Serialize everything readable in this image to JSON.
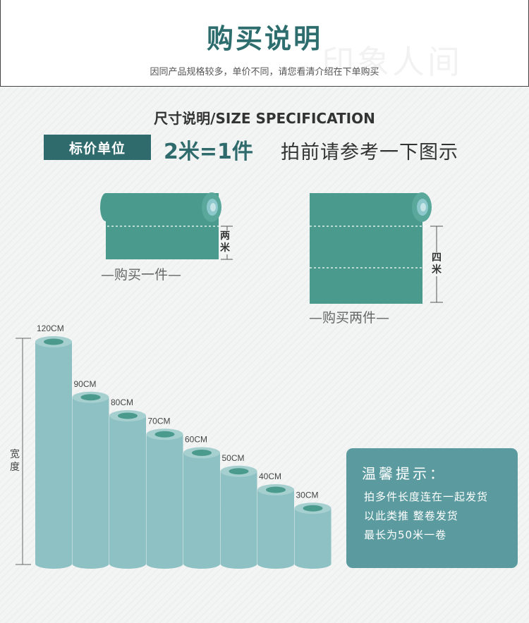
{
  "header": {
    "title": "购买说明",
    "subtitle": "因同产品规格较多，单价不同，请您看清介绍在下单购买",
    "watermark": "印象人间"
  },
  "section": {
    "title": "尺寸说明/SIZE SPECIFICATION"
  },
  "pricing": {
    "badge": "标价单位",
    "equation": "2米=1件",
    "hint": "拍前请参考一下图示"
  },
  "examples": [
    {
      "caption": "—购买一件—",
      "length_label": "两米",
      "pieces": 1
    },
    {
      "caption": "—购买两件—",
      "length_label": "四米",
      "pieces": 2
    }
  ],
  "width_chart": {
    "axis_label": "宽度",
    "rolls": [
      {
        "label": "120CM",
        "width_cm": 120
      },
      {
        "label": "90CM",
        "width_cm": 90
      },
      {
        "label": "80CM",
        "width_cm": 80
      },
      {
        "label": "70CM",
        "width_cm": 70
      },
      {
        "label": "60CM",
        "width_cm": 60
      },
      {
        "label": "50CM",
        "width_cm": 50
      },
      {
        "label": "40CM",
        "width_cm": 40
      },
      {
        "label": "30CM",
        "width_cm": 30
      }
    ]
  },
  "tips": {
    "title": "温馨提示：",
    "lines": [
      "拍多件长度连在一起发货",
      "以此类推 整卷发货",
      "最长为50米一卷"
    ]
  },
  "colors": {
    "brand_dark": "#2f6b6d",
    "roll_fabric": "#4a9b8e",
    "roll_light": "#8dc1c3",
    "tip_box": "#5b9b9f"
  }
}
